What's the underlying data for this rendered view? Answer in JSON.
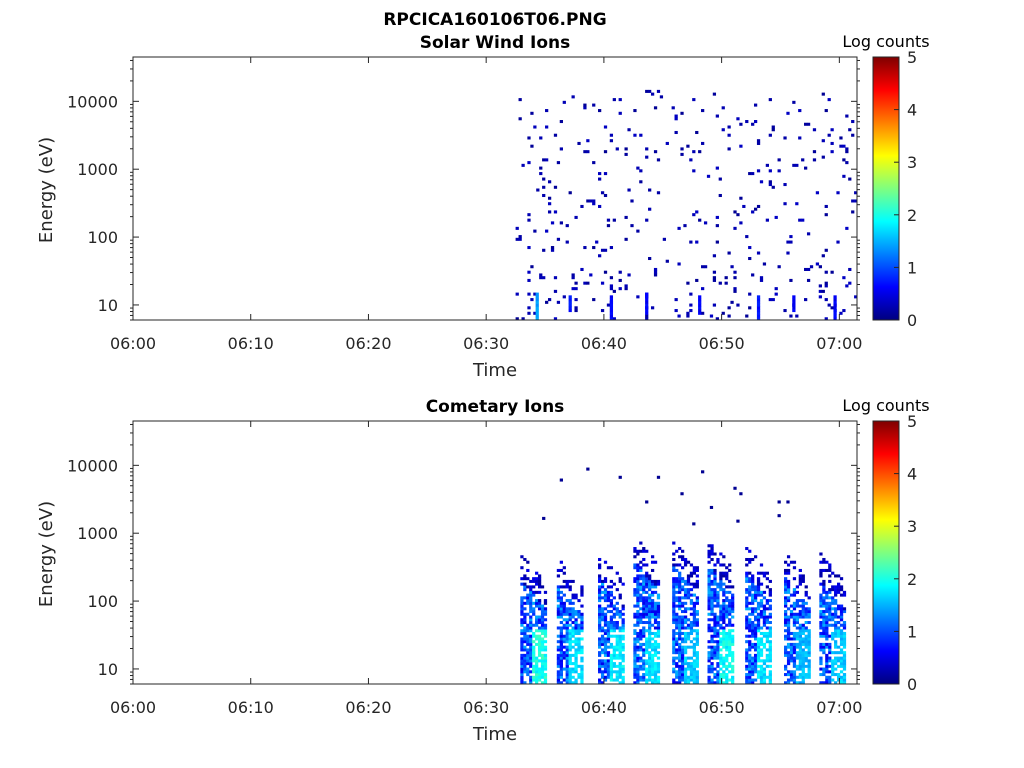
{
  "figure": {
    "title": "RPCICA160106T06.PNG"
  },
  "colors": {
    "colormap": [
      "#00007f",
      "#0000ff",
      "#007fff",
      "#00ffff",
      "#7fff7f",
      "#ffff00",
      "#ff7f00",
      "#ff0000",
      "#7f0000"
    ],
    "axis": "#262626",
    "background": "#ffffff"
  },
  "chart_data": [
    {
      "type": "heatmap",
      "title": "Solar Wind Ions",
      "xlabel": "Time",
      "ylabel": "Energy (eV)",
      "x_ticks": [
        "06:00",
        "06:10",
        "06:20",
        "06:30",
        "06:40",
        "06:50",
        "07:00"
      ],
      "x_range_minutes": [
        0,
        61.5
      ],
      "y_scale": "log",
      "y_ticks": [
        10,
        100,
        1000,
        10000
      ],
      "y_range_eV": [
        6,
        45000
      ],
      "colorbar": {
        "label": "Log counts",
        "range": [
          0,
          5
        ],
        "ticks": [
          0,
          1,
          2,
          3,
          4,
          5
        ]
      },
      "data_start_minute": 32.5,
      "features": [
        {
          "time_minute": 34.2,
          "energy_range_eV": [
            6,
            15
          ],
          "log_counts": 1.3
        },
        {
          "time_minute": 37.0,
          "energy_range_eV": [
            8,
            14
          ],
          "log_counts": 0.6
        },
        {
          "time_minute": 40.5,
          "energy_range_eV": [
            6,
            14
          ],
          "log_counts": 0.5
        },
        {
          "time_minute": 43.5,
          "energy_range_eV": [
            7,
            15
          ],
          "log_counts": 0.5
        },
        {
          "time_minute": 48.0,
          "energy_range_eV": [
            7,
            14
          ],
          "log_counts": 0.5
        },
        {
          "time_minute": 53.0,
          "energy_range_eV": [
            6,
            14
          ],
          "log_counts": 0.6
        },
        {
          "time_minute": 56.0,
          "energy_range_eV": [
            8,
            14
          ],
          "log_counts": 0.5
        },
        {
          "time_minute": 59.5,
          "energy_range_eV": [
            6,
            14
          ],
          "log_counts": 0.5
        }
      ],
      "background_counts": {
        "time_range_minute": [
          32.5,
          61.2
        ],
        "energy_range_eV": [
          6,
          15000
        ],
        "log_counts": 0.1
      }
    },
    {
      "type": "heatmap",
      "title": "Cometary Ions",
      "xlabel": "Time",
      "ylabel": "Energy (eV)",
      "x_ticks": [
        "06:00",
        "06:10",
        "06:20",
        "06:30",
        "06:40",
        "06:50",
        "07:00"
      ],
      "x_range_minutes": [
        0,
        61.5
      ],
      "y_scale": "log",
      "y_ticks": [
        10,
        100,
        1000,
        10000
      ],
      "y_range_eV": [
        6,
        45000
      ],
      "colorbar": {
        "label": "Log counts",
        "range": [
          0,
          5
        ],
        "ticks": [
          0,
          1,
          2,
          3,
          4,
          5
        ]
      },
      "data_start_minute": 32.5,
      "bursts": [
        {
          "start_minute": 32.9,
          "top_eV": 200,
          "peak_log_counts": 2.2
        },
        {
          "start_minute": 36.0,
          "top_eV": 170,
          "peak_log_counts": 1.9
        },
        {
          "start_minute": 39.5,
          "top_eV": 220,
          "peak_log_counts": 2.0
        },
        {
          "start_minute": 42.5,
          "top_eV": 380,
          "peak_log_counts": 1.9
        },
        {
          "start_minute": 45.8,
          "top_eV": 330,
          "peak_log_counts": 1.8
        },
        {
          "start_minute": 48.8,
          "top_eV": 330,
          "peak_log_counts": 2.1
        },
        {
          "start_minute": 52.0,
          "top_eV": 270,
          "peak_log_counts": 1.9
        },
        {
          "start_minute": 55.3,
          "top_eV": 220,
          "peak_log_counts": 1.7
        },
        {
          "start_minute": 58.3,
          "top_eV": 200,
          "peak_log_counts": 1.8
        }
      ],
      "sparse_high_energy_counts": {
        "energy_range_eV": [
          1000,
          10000
        ],
        "log_counts": 0.1
      }
    }
  ]
}
